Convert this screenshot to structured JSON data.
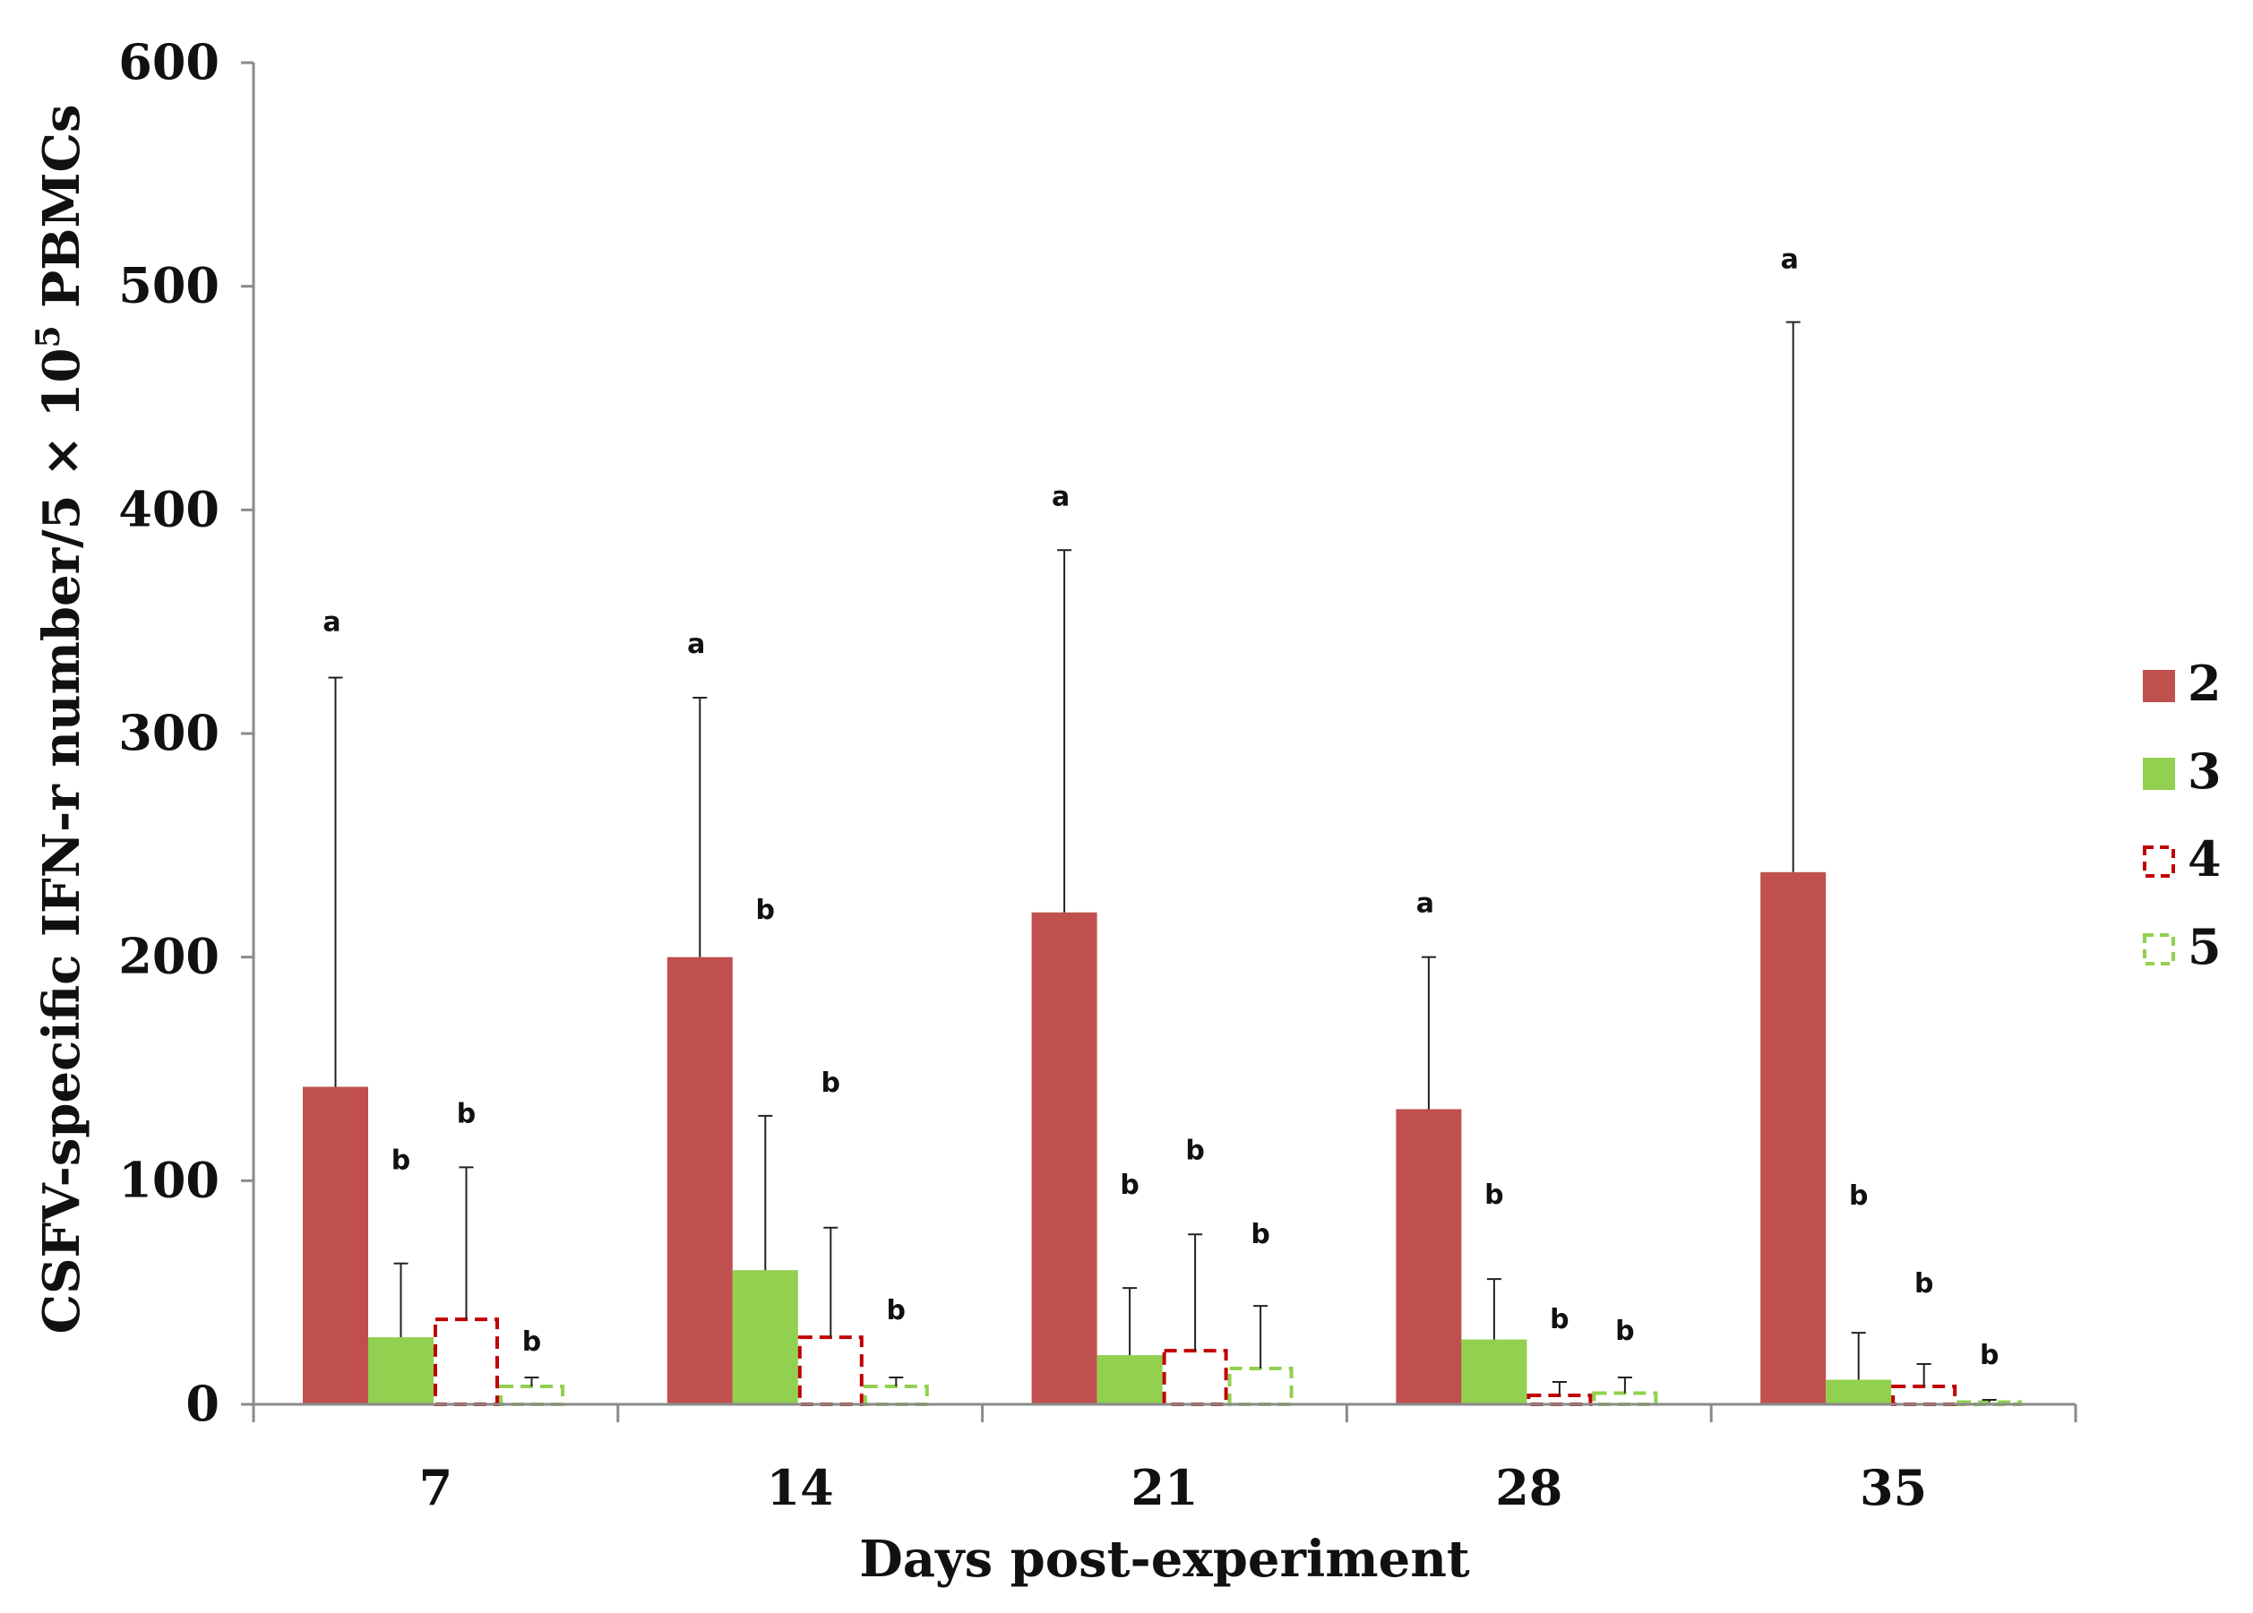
{
  "chart_data": {
    "type": "bar",
    "title": "",
    "xlabel": "Days post-experiment",
    "ylabel_main": "CSFV-specific IFN-r number/5 × 10",
    "ylabel_sup": "5",
    "ylabel_tail": " PBMCs",
    "ylim": [
      0,
      600
    ],
    "yticks": [
      "0",
      "100",
      "200",
      "300",
      "400",
      "500",
      "600"
    ],
    "categories": [
      "7",
      "14",
      "21",
      "28",
      "35"
    ],
    "legend_position": "right",
    "series": [
      {
        "name": "2",
        "style": "solid",
        "color": "#c0504d",
        "values": [
          142,
          200,
          220,
          132,
          238
        ],
        "errors": [
          183,
          116,
          162,
          68,
          246
        ],
        "letters": [
          "a",
          "a",
          "a",
          "a",
          "a"
        ]
      },
      {
        "name": "3",
        "style": "solid",
        "color": "#92d050",
        "values": [
          30,
          60,
          22,
          29,
          11
        ],
        "errors": [
          33,
          69,
          30,
          27,
          21
        ],
        "letters": [
          "b",
          "b",
          "b",
          "b",
          "b"
        ]
      },
      {
        "name": "4",
        "style": "dashed",
        "color": "#c00000",
        "values": [
          38,
          30,
          24,
          4,
          8
        ],
        "errors": [
          68,
          49,
          52,
          6,
          10
        ],
        "letters": [
          "b",
          "b",
          "b",
          "b",
          "b"
        ]
      },
      {
        "name": "5",
        "style": "dashed",
        "color": "#92d050",
        "values": [
          8,
          8,
          16,
          5,
          1
        ],
        "errors": [
          4,
          4,
          28,
          7,
          1
        ],
        "letters": [
          "b",
          "b",
          "b",
          "b",
          "b"
        ]
      }
    ]
  }
}
